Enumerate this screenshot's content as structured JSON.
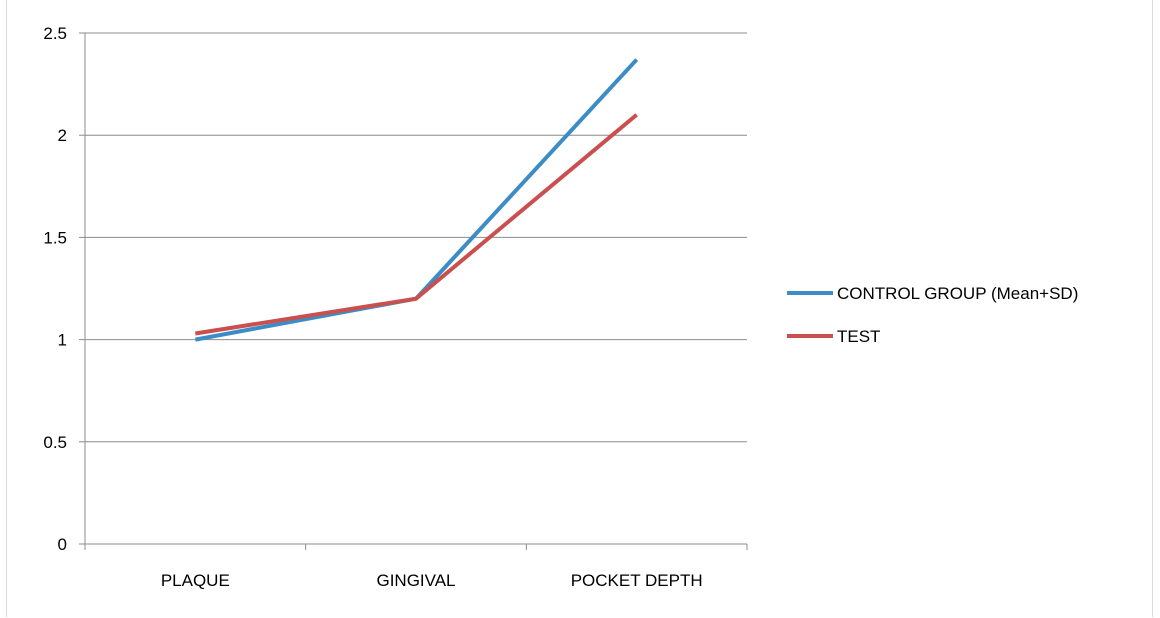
{
  "chart_data": {
    "type": "line",
    "categories": [
      "PLAQUE",
      "GINGIVAL",
      "POCKET DEPTH"
    ],
    "series": [
      {
        "name": "CONTROL GROUP (Mean+SD)",
        "color": "#3c8dc5",
        "values": [
          1.0,
          1.2,
          2.37
        ]
      },
      {
        "name": "TEST",
        "color": "#c9504e",
        "values": [
          1.03,
          1.2,
          2.1
        ]
      }
    ],
    "ylim": [
      0,
      2.5
    ],
    "yticks": [
      "0",
      "0.5",
      "1",
      "1.5",
      "2",
      "2.5"
    ],
    "grid": true,
    "legend": "right",
    "title": "",
    "xlabel": "",
    "ylabel": ""
  }
}
